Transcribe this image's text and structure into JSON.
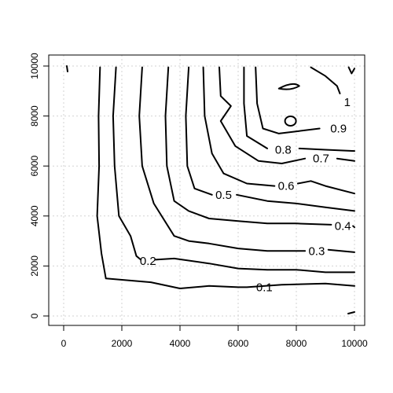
{
  "chart_data": {
    "type": "contour",
    "xlim": [
      0,
      10000
    ],
    "ylim": [
      0,
      10000
    ],
    "x_ticks": [
      0,
      2000,
      4000,
      6000,
      8000,
      10000
    ],
    "y_ticks": [
      0,
      2000,
      4000,
      6000,
      8000,
      10000
    ],
    "x_tick_labels": [
      "0",
      "2000",
      "4000",
      "6000",
      "8000",
      "10000"
    ],
    "y_tick_labels": [
      "0",
      "2000",
      "4000",
      "6000",
      "8000",
      "10000"
    ],
    "grid": true,
    "title": "",
    "xlabel": "",
    "ylabel": "",
    "levels": [
      {
        "label": "0.1",
        "value": 0.1,
        "label_at": [
          6900,
          1150
        ],
        "points": [
          [
            1250,
            9950
          ],
          [
            1200,
            8000
          ],
          [
            1220,
            6000
          ],
          [
            1150,
            4000
          ],
          [
            1300,
            2500
          ],
          [
            1450,
            1500
          ],
          [
            3000,
            1350
          ],
          [
            4000,
            1100
          ],
          [
            5000,
            1200
          ],
          [
            6000,
            1150
          ],
          [
            6300,
            1150
          ],
          [
            7500,
            1250
          ],
          [
            9000,
            1300
          ],
          [
            10000,
            1200
          ]
        ]
      },
      {
        "label": "0.2",
        "value": 0.2,
        "label_at": [
          2900,
          2200
        ],
        "points": [
          [
            1800,
            9950
          ],
          [
            1700,
            8000
          ],
          [
            1750,
            6000
          ],
          [
            1900,
            4000
          ],
          [
            2300,
            3200
          ],
          [
            2500,
            2400
          ],
          [
            2650,
            2250
          ]
        ],
        "points2": [
          [
            3150,
            2250
          ],
          [
            3800,
            2300
          ],
          [
            5000,
            2100
          ],
          [
            6000,
            1900
          ],
          [
            7000,
            1850
          ],
          [
            8000,
            1850
          ],
          [
            9000,
            1750
          ],
          [
            10000,
            1750
          ]
        ]
      },
      {
        "label": "0.3",
        "value": 0.3,
        "label_at": [
          8700,
          2600
        ],
        "points": [
          [
            2700,
            9950
          ],
          [
            2600,
            8000
          ],
          [
            2700,
            6000
          ],
          [
            3100,
            4500
          ],
          [
            3800,
            3200
          ],
          [
            4300,
            3000
          ],
          [
            5000,
            2900
          ],
          [
            6000,
            2700
          ],
          [
            7000,
            2600
          ],
          [
            8300,
            2600
          ]
        ],
        "points2": [
          [
            9100,
            2650
          ],
          [
            10000,
            2550
          ]
        ]
      },
      {
        "label": "0.4",
        "value": 0.4,
        "label_at": [
          9600,
          3600
        ],
        "points": [
          [
            3600,
            9950
          ],
          [
            3500,
            8000
          ],
          [
            3550,
            6000
          ],
          [
            3800,
            4600
          ],
          [
            4300,
            4200
          ],
          [
            5000,
            3900
          ],
          [
            6000,
            3800
          ],
          [
            7000,
            3700
          ],
          [
            8000,
            3700
          ],
          [
            9200,
            3650
          ]
        ],
        "points2": [
          [
            9950,
            3600
          ],
          [
            10000,
            3550
          ]
        ]
      },
      {
        "label": "0.5",
        "value": 0.5,
        "label_at": [
          5500,
          4850
        ],
        "points": [
          [
            4300,
            9950
          ],
          [
            4200,
            8000
          ],
          [
            4250,
            6000
          ],
          [
            4500,
            5100
          ],
          [
            5100,
            4850
          ]
        ],
        "points2": [
          [
            5950,
            4850
          ],
          [
            7000,
            4600
          ],
          [
            8000,
            4500
          ],
          [
            9000,
            4350
          ],
          [
            10000,
            4200
          ]
        ]
      },
      {
        "label": "0.6",
        "value": 0.6,
        "label_at": [
          7650,
          5200
        ],
        "points": [
          [
            4800,
            9950
          ],
          [
            4850,
            8000
          ],
          [
            5100,
            6500
          ],
          [
            5500,
            5700
          ],
          [
            6300,
            5300
          ],
          [
            7250,
            5200
          ]
        ],
        "points2": [
          [
            8050,
            5300
          ],
          [
            8500,
            5400
          ],
          [
            9000,
            5200
          ],
          [
            10000,
            4900
          ]
        ]
      },
      {
        "label": "0.7",
        "value": 0.7,
        "label_at": [
          8850,
          6300
        ],
        "points": [
          [
            5350,
            9950
          ],
          [
            5400,
            8800
          ],
          [
            5750,
            8400
          ],
          [
            5400,
            7800
          ],
          [
            5900,
            6800
          ],
          [
            6700,
            6200
          ],
          [
            7500,
            6100
          ],
          [
            8300,
            6300
          ]
        ],
        "points2": [
          [
            9400,
            6300
          ],
          [
            10000,
            6200
          ]
        ]
      },
      {
        "label": "0.8",
        "value": 0.8,
        "label_at": [
          7550,
          6650
        ],
        "points": [
          [
            6200,
            9950
          ],
          [
            6200,
            8500
          ],
          [
            6300,
            7200
          ],
          [
            7000,
            6700
          ]
        ],
        "points2": [
          [
            8100,
            6700
          ],
          [
            9000,
            6650
          ],
          [
            10000,
            6600
          ]
        ]
      },
      {
        "label": "0.9",
        "value": 0.9,
        "label_at": [
          9450,
          7500
        ],
        "points": [
          [
            6600,
            9950
          ],
          [
            6650,
            8500
          ],
          [
            6850,
            7500
          ],
          [
            7400,
            7300
          ],
          [
            8100,
            7400
          ],
          [
            8800,
            7500
          ]
        ],
        "points2": [
          [
            10000,
            7450
          ]
        ]
      },
      {
        "label": "1",
        "value": 1.0,
        "label_at": [
          9750,
          8550
        ],
        "points": [
          [
            8500,
            9950
          ],
          [
            9000,
            9600
          ],
          [
            9400,
            9200
          ],
          [
            9500,
            8900
          ]
        ],
        "points2": [
          [
            10000,
            9900
          ],
          [
            9900,
            9700
          ],
          [
            9800,
            9950
          ]
        ]
      }
    ]
  }
}
